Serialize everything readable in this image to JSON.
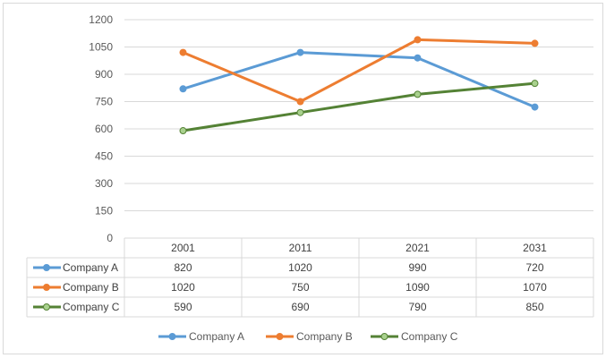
{
  "chart_data": {
    "type": "line",
    "title": "",
    "xlabel": "",
    "ylabel": "",
    "categories": [
      "2001",
      "2011",
      "2021",
      "2031"
    ],
    "ylim": [
      0,
      1200
    ],
    "yticks": [
      0,
      150,
      300,
      450,
      600,
      750,
      900,
      1050,
      1200
    ],
    "grid": true,
    "legend_position": "bottom",
    "data_table": true,
    "series": [
      {
        "name": "Company A",
        "color": "#5b9bd5",
        "values": [
          820,
          1020,
          990,
          720
        ]
      },
      {
        "name": "Company B",
        "color": "#ed7d31",
        "values": [
          1020,
          750,
          1090,
          1070
        ]
      },
      {
        "name": "Company C",
        "color": "#548235",
        "marker_fill": "#a9d18e",
        "values": [
          590,
          690,
          790,
          850
        ]
      }
    ]
  }
}
